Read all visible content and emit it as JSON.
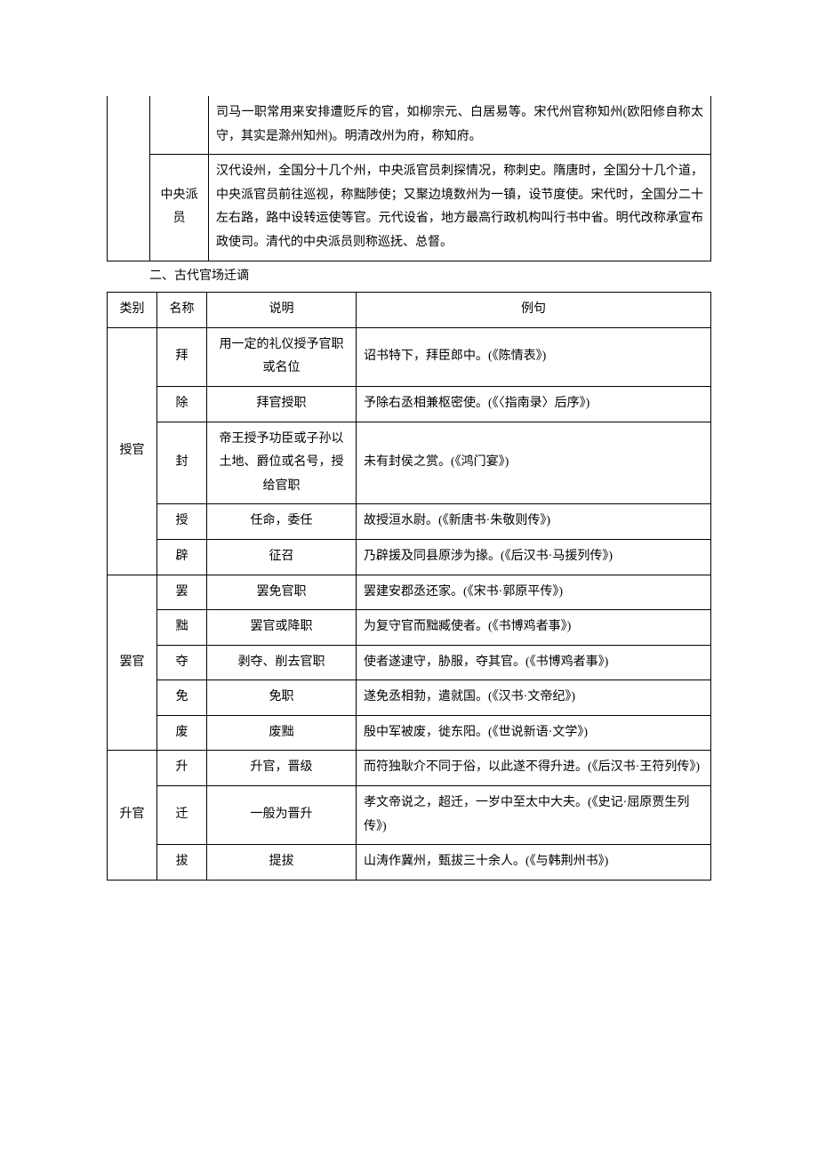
{
  "table1": {
    "rows": [
      {
        "col3": "司马一职常用来安排遭贬斥的官，如柳宗元、白居易等。宋代州官称知州(欧阳修自称太守，其实是滁州知州)。明清改州为府，称知府。"
      },
      {
        "col2": "中央派员",
        "col3": "汉代设州，全国分十几个州，中央派官员刺探情况，称刺史。隋唐时，全国分十几个道，中央派官员前往巡视，称黜陟使；又聚边境数州为一镇，设节度使。宋代时，全国分二十左右路，路中设转运使等官。元代设省，地方最高行政机构叫行书中省。明代改称承宣布政使司。清代的中央派员则称巡抚、总督。"
      }
    ]
  },
  "sectionTitle": "二、古代官场迁谪",
  "table2": {
    "header": {
      "c1": "类别",
      "c2": "名称",
      "c3": "说明",
      "c4": "例句"
    },
    "groups": [
      {
        "category": "授官",
        "rows": [
          {
            "name": "拜",
            "desc": "用一定的礼仪授予官职或名位",
            "example": "诏书特下，拜臣郎中。(《陈情表》)"
          },
          {
            "name": "除",
            "desc": "拜官授职",
            "example": "予除右丞相兼枢密使。(《〈指南录〉后序》)"
          },
          {
            "name": "封",
            "desc": "帝王授予功臣或子孙以土地、爵位或名号，授给官职",
            "example": "未有封侯之赏。(《鸿门宴》)"
          },
          {
            "name": "授",
            "desc": "任命，委任",
            "example": "故授洹水尉。(《新唐书·朱敬则传》)"
          },
          {
            "name": "辟",
            "desc": "征召",
            "example": "乃辟援及同县原涉为掾。(《后汉书·马援列传》)"
          }
        ]
      },
      {
        "category": "罢官",
        "rows": [
          {
            "name": "罢",
            "desc": "罢免官职",
            "example": "罢建安郡丞还家。(《宋书·郭原平传》)"
          },
          {
            "name": "黜",
            "desc": "罢官或降职",
            "example": "为复守官而黜臧使者。(《书博鸡者事》)"
          },
          {
            "name": "夺",
            "desc": "剥夺、削去官职",
            "example": "使者遂逮守，胁服，夺其官。(《书博鸡者事》)"
          },
          {
            "name": "免",
            "desc": "免职",
            "example": "遂免丞相勃，遣就国。(《汉书·文帝纪》)"
          },
          {
            "name": "废",
            "desc": "废黜",
            "example": "殷中军被废，徙东阳。(《世说新语·文学》)"
          }
        ]
      },
      {
        "category": "升官",
        "rows": [
          {
            "name": "升",
            "desc": "升官，晋级",
            "example": "而符独耿介不同于俗，以此遂不得升进。(《后汉书·王符列传》)"
          },
          {
            "name": "迁",
            "desc": "一般为晋升",
            "example": "孝文帝说之，超迁，一岁中至太中大夫。(《史记·屈原贾生列传》)"
          },
          {
            "name": "拔",
            "desc": "提拔",
            "example": "山涛作冀州，甄拔三十余人。(《与韩荆州书》)"
          }
        ]
      }
    ]
  }
}
